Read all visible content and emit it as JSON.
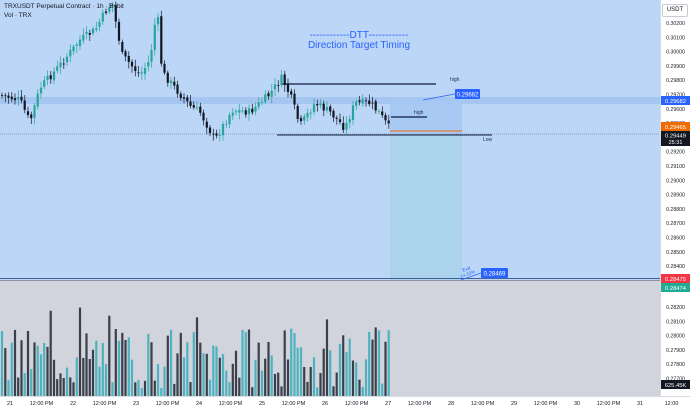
{
  "header": {
    "symbol_line": "TRXUSDT Perpetual Contract · 1h · Bybit",
    "volume_line": "Vol · TRX"
  },
  "currency_button": "USDT",
  "overlay_title": {
    "line1": "------------DTT------------",
    "line2": "Direction Target Timing"
  },
  "price_axis": {
    "ticks": [
      "0.30200",
      "0.30100",
      "0.30000",
      "0.29900",
      "0.29800",
      "0.29700",
      "0.29600",
      "0.29500",
      "0.29300",
      "0.29200",
      "0.29100",
      "0.29000",
      "0.28900",
      "0.28800",
      "0.28700",
      "0.28600",
      "0.28500",
      "0.28400",
      "0.28300",
      "0.28200",
      "0.28100",
      "0.28000",
      "0.27900",
      "0.27800",
      "0.27700"
    ]
  },
  "price_labels": {
    "level_blue": "0.29682",
    "orange": "0.29465",
    "current": "0.29449",
    "countdown": "25:31",
    "red": "0.28475",
    "green": "0.28474",
    "volume": "625.45K"
  },
  "annotations": {
    "high_top": "high",
    "high_mid": "high",
    "high_price": "0.29682",
    "low": "Low",
    "exit_label": "Exit",
    "exit_sub": "14.33%",
    "exit_price": "0.28469"
  },
  "time_axis": {
    "labels": [
      "21",
      "12:00 PM",
      "22",
      "12:00 PM",
      "23",
      "12:00 PM",
      "24",
      "12:00 PM",
      "25",
      "12:00 PM",
      "26",
      "12:00 PM",
      "27",
      "12:00 PM",
      "28",
      "12:00 PM",
      "29",
      "12:00 PM",
      "30",
      "12:00 PM",
      "31",
      "12:00"
    ]
  },
  "colors": {
    "up": "#26a69a",
    "down": "#131722",
    "band": "#b7d0f5",
    "zone": "#a8d4ea",
    "title": "#2962ff",
    "bg_top": "#bcd6f7",
    "bg_bottom": "#d1d4dc",
    "orange": "#ef6c00",
    "red": "#f23645",
    "green": "#22ab94",
    "blue_label": "#2962ff"
  }
}
